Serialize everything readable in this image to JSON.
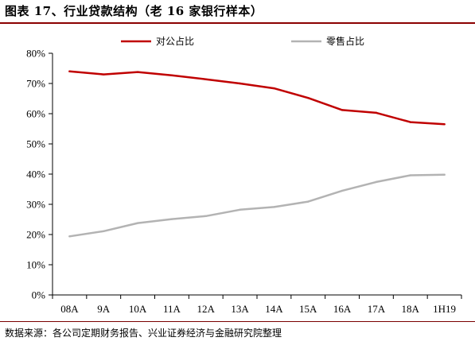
{
  "title": "图表 17、行业贷款结构（老 16 家银行样本）",
  "source": "数据来源：各公司定期财务报告、兴业证券经济与金融研究院整理",
  "chart_data": {
    "type": "line",
    "categories": [
      "08A",
      "9A",
      "10A",
      "11A",
      "12A",
      "13A",
      "14A",
      "15A",
      "16A",
      "17A",
      "18A",
      "1H19"
    ],
    "series": [
      {
        "name": "对公占比",
        "color": "#c00000",
        "values": [
          74.0,
          73.0,
          73.8,
          72.7,
          71.4,
          70.0,
          68.4,
          65.2,
          61.2,
          60.3,
          57.2,
          56.5
        ]
      },
      {
        "name": "零售占比",
        "color": "#b3b3b3",
        "values": [
          19.4,
          21.1,
          23.8,
          25.1,
          26.1,
          28.2,
          29.1,
          30.9,
          34.5,
          37.4,
          39.6,
          39.8
        ]
      }
    ],
    "y_ticks": [
      "0%",
      "10%",
      "20%",
      "30%",
      "40%",
      "50%",
      "60%",
      "70%",
      "80%"
    ],
    "ylim": [
      0,
      80
    ],
    "ylabel": "",
    "xlabel": "",
    "grid": false,
    "legend_position": "top"
  }
}
